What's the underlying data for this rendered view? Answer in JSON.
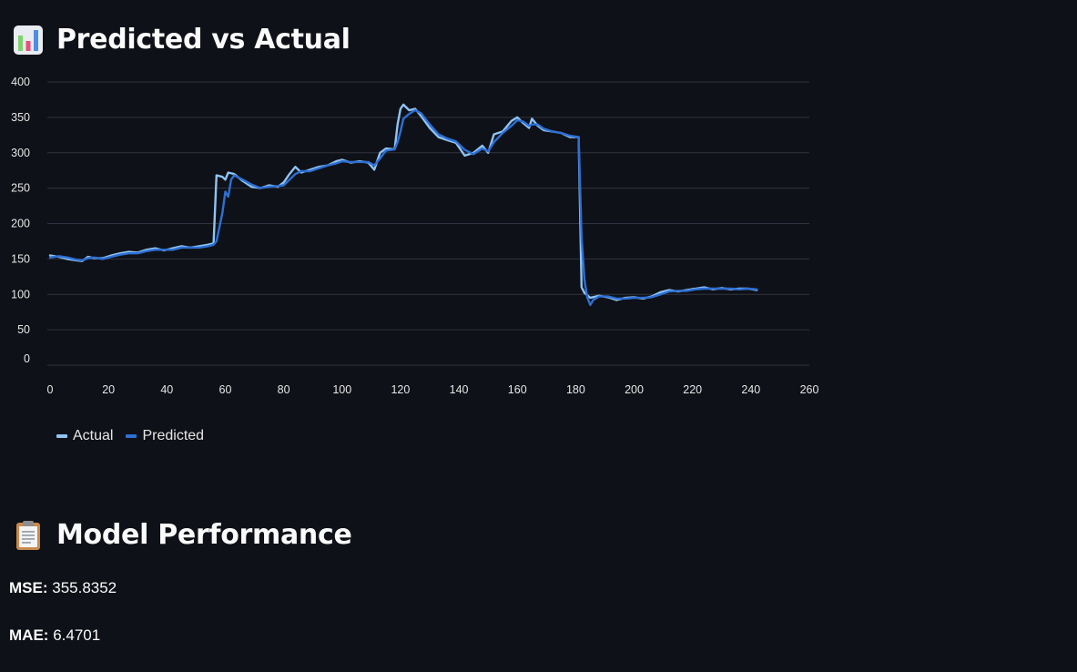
{
  "chart_section": {
    "title": "Predicted vs Actual",
    "icon": "bar-chart-emoji-icon"
  },
  "performance_section": {
    "title": "Model Performance",
    "icon": "clipboard-emoji-icon",
    "metrics": [
      {
        "label": "MSE:",
        "value": "355.8352"
      },
      {
        "label": "MAE:",
        "value": "6.4701"
      }
    ]
  },
  "colors": {
    "background": "#0e1117",
    "actual": "#8fc3f2",
    "predicted": "#2e6fd4",
    "grid": "#31333f"
  },
  "chart_data": {
    "type": "line",
    "title": "",
    "xlabel": "",
    "ylabel": "",
    "xlim": [
      0,
      260
    ],
    "ylim": [
      0,
      400
    ],
    "x_ticks": [
      0,
      20,
      40,
      60,
      80,
      100,
      120,
      140,
      160,
      180,
      200,
      220,
      240,
      260
    ],
    "y_ticks": [
      0,
      50,
      100,
      150,
      200,
      250,
      300,
      350,
      400
    ],
    "grid": true,
    "legend_position": "bottom-left",
    "series": [
      {
        "name": "Actual",
        "points": [
          [
            0,
            155
          ],
          [
            3,
            153
          ],
          [
            6,
            150
          ],
          [
            9,
            148
          ],
          [
            11,
            147
          ],
          [
            13,
            153
          ],
          [
            15,
            151
          ],
          [
            18,
            151
          ],
          [
            21,
            155
          ],
          [
            24,
            158
          ],
          [
            27,
            160
          ],
          [
            30,
            159
          ],
          [
            33,
            163
          ],
          [
            36,
            165
          ],
          [
            39,
            162
          ],
          [
            42,
            165
          ],
          [
            45,
            168
          ],
          [
            48,
            166
          ],
          [
            51,
            168
          ],
          [
            54,
            170
          ],
          [
            56,
            172
          ],
          [
            57,
            268
          ],
          [
            59,
            266
          ],
          [
            60,
            262
          ],
          [
            61,
            272
          ],
          [
            63,
            270
          ],
          [
            66,
            260
          ],
          [
            69,
            252
          ],
          [
            72,
            250
          ],
          [
            75,
            254
          ],
          [
            78,
            252
          ],
          [
            80,
            258
          ],
          [
            82,
            270
          ],
          [
            84,
            280
          ],
          [
            86,
            272
          ],
          [
            89,
            276
          ],
          [
            92,
            280
          ],
          [
            95,
            282
          ],
          [
            98,
            288
          ],
          [
            100,
            290
          ],
          [
            103,
            286
          ],
          [
            106,
            288
          ],
          [
            109,
            286
          ],
          [
            111,
            276
          ],
          [
            113,
            300
          ],
          [
            115,
            306
          ],
          [
            118,
            305
          ],
          [
            119,
            340
          ],
          [
            120,
            362
          ],
          [
            121,
            368
          ],
          [
            123,
            360
          ],
          [
            125,
            362
          ],
          [
            127,
            352
          ],
          [
            130,
            335
          ],
          [
            133,
            322
          ],
          [
            136,
            318
          ],
          [
            139,
            314
          ],
          [
            142,
            296
          ],
          [
            145,
            300
          ],
          [
            148,
            310
          ],
          [
            150,
            300
          ],
          [
            152,
            326
          ],
          [
            155,
            330
          ],
          [
            158,
            345
          ],
          [
            160,
            350
          ],
          [
            162,
            342
          ],
          [
            164,
            335
          ],
          [
            165,
            348
          ],
          [
            167,
            338
          ],
          [
            169,
            332
          ],
          [
            172,
            330
          ],
          [
            175,
            328
          ],
          [
            178,
            322
          ],
          [
            181,
            322
          ],
          [
            182,
            110
          ],
          [
            183,
            102
          ],
          [
            185,
            95
          ],
          [
            188,
            98
          ],
          [
            191,
            96
          ],
          [
            194,
            92
          ],
          [
            197,
            95
          ],
          [
            200,
            96
          ],
          [
            203,
            94
          ],
          [
            206,
            97
          ],
          [
            209,
            103
          ],
          [
            212,
            106
          ],
          [
            215,
            104
          ],
          [
            218,
            106
          ],
          [
            221,
            108
          ],
          [
            224,
            110
          ],
          [
            227,
            107
          ],
          [
            230,
            109
          ],
          [
            233,
            107
          ],
          [
            236,
            108
          ],
          [
            239,
            108
          ],
          [
            242,
            106
          ]
        ]
      },
      {
        "name": "Predicted",
        "points": [
          [
            0,
            152
          ],
          [
            3,
            154
          ],
          [
            6,
            152
          ],
          [
            9,
            149
          ],
          [
            11,
            148
          ],
          [
            13,
            151
          ],
          [
            15,
            152
          ],
          [
            18,
            150
          ],
          [
            21,
            153
          ],
          [
            24,
            156
          ],
          [
            27,
            158
          ],
          [
            30,
            158
          ],
          [
            33,
            161
          ],
          [
            36,
            163
          ],
          [
            39,
            163
          ],
          [
            42,
            163
          ],
          [
            45,
            166
          ],
          [
            48,
            166
          ],
          [
            51,
            166
          ],
          [
            54,
            168
          ],
          [
            56,
            170
          ],
          [
            57,
            175
          ],
          [
            59,
            215
          ],
          [
            60,
            245
          ],
          [
            61,
            238
          ],
          [
            62,
            262
          ],
          [
            63,
            268
          ],
          [
            66,
            262
          ],
          [
            69,
            255
          ],
          [
            72,
            250
          ],
          [
            75,
            252
          ],
          [
            78,
            253
          ],
          [
            80,
            254
          ],
          [
            82,
            262
          ],
          [
            84,
            270
          ],
          [
            86,
            274
          ],
          [
            89,
            274
          ],
          [
            92,
            278
          ],
          [
            95,
            282
          ],
          [
            98,
            285
          ],
          [
            100,
            288
          ],
          [
            103,
            287
          ],
          [
            106,
            287
          ],
          [
            109,
            287
          ],
          [
            111,
            282
          ],
          [
            113,
            292
          ],
          [
            115,
            303
          ],
          [
            118,
            305
          ],
          [
            119,
            315
          ],
          [
            120,
            330
          ],
          [
            121,
            348
          ],
          [
            123,
            355
          ],
          [
            125,
            360
          ],
          [
            127,
            356
          ],
          [
            130,
            340
          ],
          [
            133,
            326
          ],
          [
            136,
            320
          ],
          [
            139,
            316
          ],
          [
            142,
            304
          ],
          [
            145,
            298
          ],
          [
            148,
            306
          ],
          [
            150,
            302
          ],
          [
            152,
            315
          ],
          [
            155,
            328
          ],
          [
            158,
            338
          ],
          [
            160,
            346
          ],
          [
            162,
            344
          ],
          [
            164,
            338
          ],
          [
            165,
            340
          ],
          [
            167,
            340
          ],
          [
            169,
            334
          ],
          [
            172,
            330
          ],
          [
            175,
            328
          ],
          [
            178,
            324
          ],
          [
            181,
            322
          ],
          [
            182,
            180
          ],
          [
            183,
            120
          ],
          [
            184,
            95
          ],
          [
            185,
            85
          ],
          [
            186,
            92
          ],
          [
            188,
            97
          ],
          [
            191,
            97
          ],
          [
            194,
            94
          ],
          [
            197,
            94
          ],
          [
            200,
            95
          ],
          [
            203,
            95
          ],
          [
            206,
            96
          ],
          [
            209,
            100
          ],
          [
            212,
            104
          ],
          [
            215,
            105
          ],
          [
            218,
            105
          ],
          [
            221,
            107
          ],
          [
            224,
            108
          ],
          [
            227,
            108
          ],
          [
            230,
            108
          ],
          [
            233,
            108
          ],
          [
            236,
            107
          ],
          [
            239,
            108
          ],
          [
            242,
            107
          ]
        ]
      }
    ]
  }
}
